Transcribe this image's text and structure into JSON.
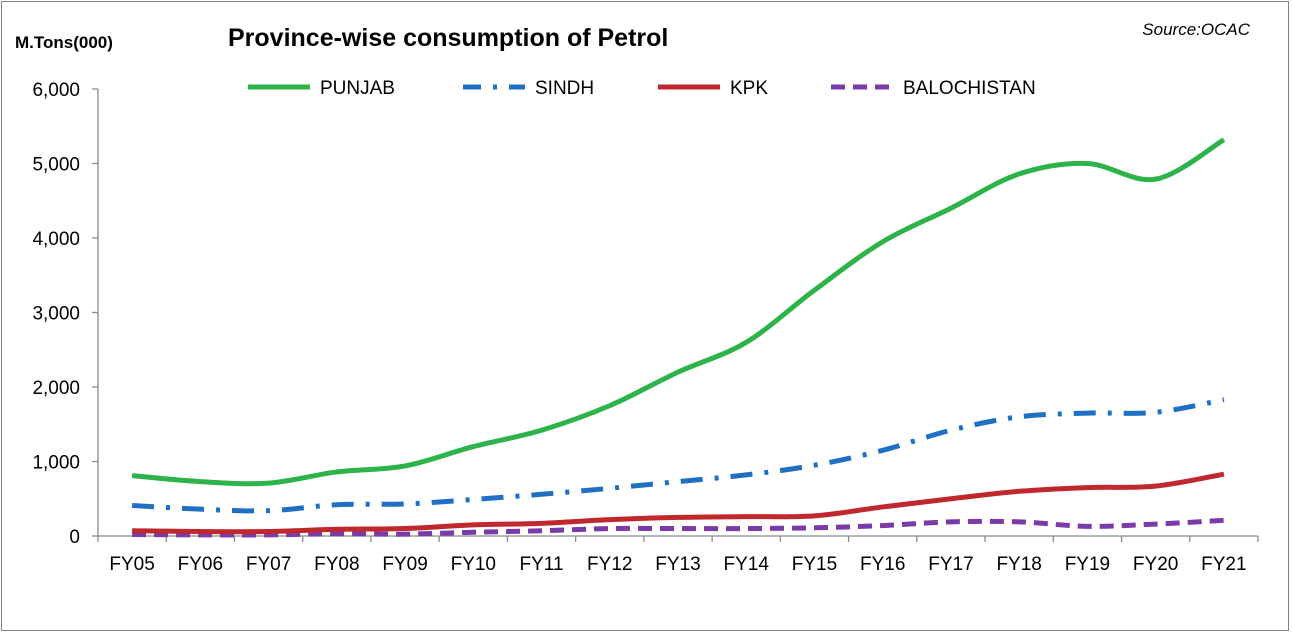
{
  "chart_data": {
    "type": "line",
    "title": "Province-wise consumption of Petrol",
    "unit_label": "M.Tons(000)",
    "source": "Source:OCAC",
    "categories": [
      "FY05",
      "FY06",
      "FY07",
      "FY08",
      "FY09",
      "FY10",
      "FY11",
      "FY12",
      "FY13",
      "FY14",
      "FY15",
      "FY16",
      "FY17",
      "FY18",
      "FY19",
      "FY20",
      "FY21"
    ],
    "ylim": [
      0,
      6000
    ],
    "yticks": [
      0,
      1000,
      2000,
      3000,
      4000,
      5000,
      6000
    ],
    "ytick_labels": [
      "0",
      "1,000",
      "2,000",
      "3,000",
      "4,000",
      "5,000",
      "6,000"
    ],
    "grid": false,
    "legend_position": "top",
    "series": [
      {
        "name": "PUNJAB",
        "color": "#2db34a",
        "style": "solid",
        "values": [
          810,
          730,
          710,
          860,
          940,
          1200,
          1420,
          1750,
          2200,
          2600,
          3300,
          3950,
          4400,
          4860,
          5000,
          4790,
          5320
        ]
      },
      {
        "name": "SINDH",
        "color": "#1f6fc5",
        "style": "dash-dot",
        "values": [
          410,
          360,
          340,
          420,
          430,
          490,
          560,
          640,
          730,
          820,
          950,
          1150,
          1420,
          1600,
          1650,
          1660,
          1830
        ]
      },
      {
        "name": "KPK",
        "color": "#c0282d",
        "style": "solid",
        "values": [
          70,
          60,
          60,
          90,
          100,
          150,
          170,
          220,
          250,
          260,
          270,
          390,
          500,
          600,
          650,
          670,
          830
        ]
      },
      {
        "name": "BALOCHISTAN",
        "color": "#7a3aa8",
        "style": "dash",
        "values": [
          20,
          15,
          15,
          30,
          25,
          50,
          70,
          100,
          100,
          100,
          110,
          140,
          190,
          190,
          130,
          160,
          210
        ]
      }
    ]
  }
}
